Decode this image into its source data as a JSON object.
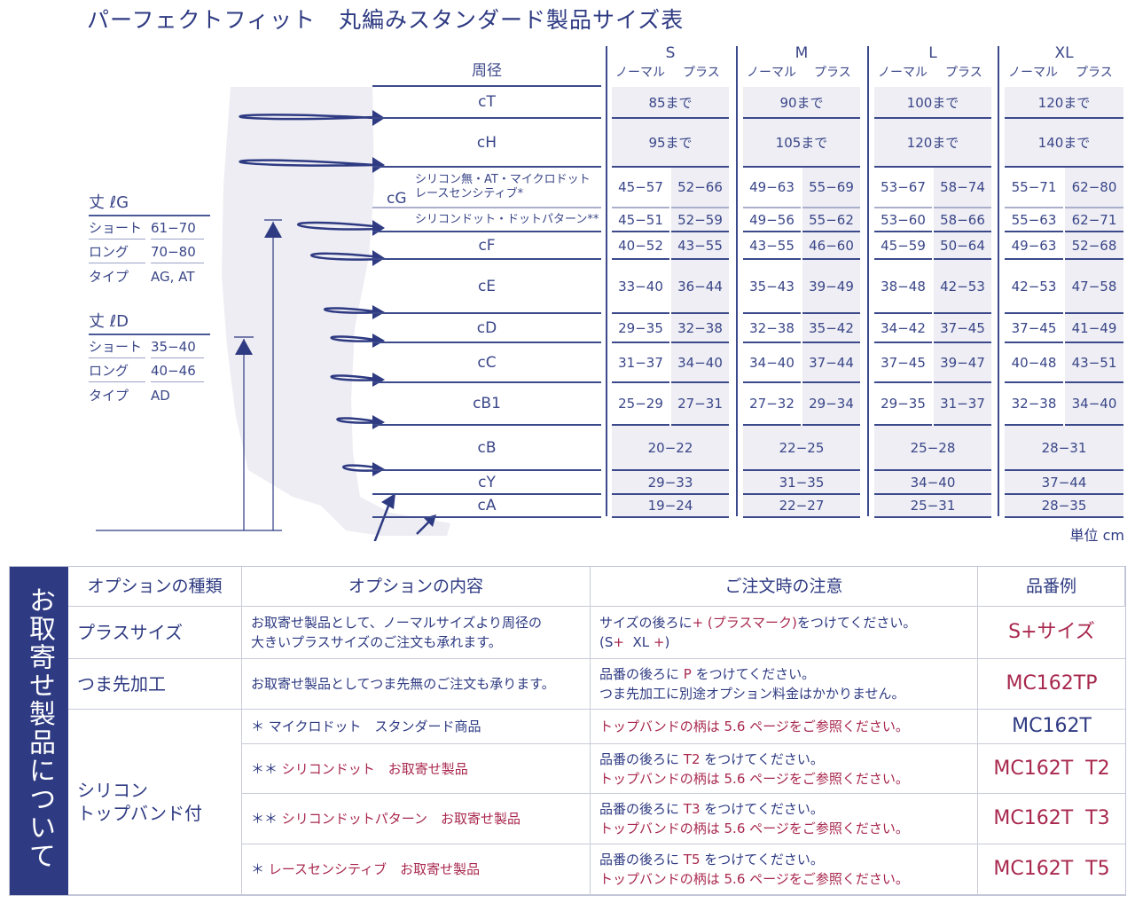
{
  "title": "パーフェクトフィット　丸編みスタンダード製品サイズ表",
  "colors": {
    "navy": "#2e3a82",
    "accent_red": "#a8284e",
    "shade": "#eeeef4"
  },
  "size_table": {
    "label_header": "周径",
    "sizes": [
      "S",
      "M",
      "L",
      "XL"
    ],
    "sub_headers": [
      "ノーマル",
      "プラス"
    ],
    "cg_label": "cG",
    "rows": [
      {
        "label": "cT",
        "merged": [
          "85まで",
          "90まで",
          "100まで",
          "120まで"
        ]
      },
      {
        "label": "cH",
        "merged": [
          "95まで",
          "105まで",
          "120まで",
          "140まで"
        ]
      },
      {
        "label": "シリコン無・AT・マイクロドット\nレースセンシティブ*",
        "split": [
          "45−57",
          "52−66",
          "49−63",
          "55−69",
          "53−67",
          "58−74",
          "55−71",
          "62−80"
        ]
      },
      {
        "label": "シリコンドット・ドットパターン**",
        "split": [
          "45−51",
          "52−59",
          "49−56",
          "55−62",
          "53−60",
          "58−66",
          "55−63",
          "62−71"
        ]
      },
      {
        "label": "cF",
        "split": [
          "40−52",
          "43−55",
          "43−55",
          "46−60",
          "45−59",
          "50−64",
          "49−63",
          "52−68"
        ]
      },
      {
        "label": "cE",
        "split": [
          "33−40",
          "36−44",
          "35−43",
          "39−49",
          "38−48",
          "42−53",
          "42−53",
          "47−58"
        ]
      },
      {
        "label": "cD",
        "split": [
          "29−35",
          "32−38",
          "32−38",
          "35−42",
          "34−42",
          "37−45",
          "37−45",
          "41−49"
        ]
      },
      {
        "label": "cC",
        "split": [
          "31−37",
          "34−40",
          "34−40",
          "37−44",
          "37−45",
          "39−47",
          "40−48",
          "43−51"
        ]
      },
      {
        "label": "cB1",
        "split": [
          "25−29",
          "27−31",
          "27−32",
          "29−34",
          "29−35",
          "31−37",
          "32−38",
          "34−40"
        ]
      },
      {
        "label": "cB",
        "merged": [
          "20−22",
          "22−25",
          "25−28",
          "28−31"
        ]
      },
      {
        "label": "cY",
        "merged": [
          "29−33",
          "31−35",
          "34−40",
          "37−44"
        ]
      },
      {
        "label": "cA",
        "merged": [
          "19−24",
          "22−27",
          "25−31",
          "28−35"
        ]
      }
    ],
    "unit": "単位 cm"
  },
  "lengths": [
    {
      "heading": "丈 ℓG",
      "rows": [
        [
          "ショート",
          "61−70"
        ],
        [
          "ロング",
          "70−80"
        ],
        [
          "タイプ",
          "AG, AT"
        ]
      ]
    },
    {
      "heading": "丈 ℓD",
      "rows": [
        [
          "ショート",
          "35−40"
        ],
        [
          "ロング",
          "40−46"
        ],
        [
          "タイプ",
          "AD"
        ]
      ]
    }
  ],
  "options": {
    "band_label": "お取寄せ製品について",
    "headers": [
      "オプションの種類",
      "オプションの内容",
      "ご注文時の注意",
      "品番例"
    ],
    "rows": [
      {
        "kind": "プラスサイズ",
        "content": [
          [
            {
              "t": "お取寄せ製品として、ノーマルサイズより周径の"
            }
          ],
          [
            {
              "t": "大きいプラスサイズのご注文も承れます。"
            }
          ]
        ],
        "note": [
          [
            {
              "t": "サイズの後ろに"
            },
            {
              "t": "+ (プラスマーク)",
              "r": true
            },
            {
              "t": "をつけてください。"
            }
          ],
          [
            {
              "t": "(S"
            },
            {
              "t": "+",
              "r": true
            },
            {
              "t": "  XL "
            },
            {
              "t": "+",
              "r": true
            },
            {
              "t": ")"
            }
          ]
        ],
        "code": "S+サイズ",
        "code_red": true
      },
      {
        "kind": "つま先加工",
        "content": [
          [
            {
              "t": "お取寄せ製品としてつま先無のご注文も承ります。"
            }
          ]
        ],
        "note": [
          [
            {
              "t": "品番の後ろに "
            },
            {
              "t": "P",
              "r": true
            },
            {
              "t": " をつけてください。"
            }
          ],
          [
            {
              "t": "つま先加工に別途オプション料金はかかりません。"
            }
          ]
        ],
        "code": "MC162TP",
        "code_red": true
      },
      {
        "kind": "シリコン\nトップバンド付",
        "content": [
          [
            {
              "t": "＊ マイクロドット　スタンダード商品"
            }
          ]
        ],
        "note": [
          [
            {
              "t": "トップバンドの柄は 5.6 ページをご参照ください。",
              "r": true
            }
          ]
        ],
        "code": "MC162T",
        "code_red": false
      },
      {
        "content": [
          [
            {
              "t": "＊＊ "
            },
            {
              "t": "シリコンドット　お取寄せ製品",
              "r": true
            }
          ]
        ],
        "note": [
          [
            {
              "t": "品番の後ろに "
            },
            {
              "t": "T2",
              "r": true
            },
            {
              "t": " をつけてください。"
            }
          ],
          [
            {
              "t": "トップバンドの柄は 5.6 ページをご参照ください。",
              "r": true
            }
          ]
        ],
        "code": "MC162T  T2",
        "code_red": true
      },
      {
        "content": [
          [
            {
              "t": "＊＊ "
            },
            {
              "t": "シリコンドットパターン　お取寄せ製品",
              "r": true
            }
          ]
        ],
        "note": [
          [
            {
              "t": "品番の後ろに "
            },
            {
              "t": "T3",
              "r": true
            },
            {
              "t": " をつけてください。"
            }
          ],
          [
            {
              "t": "トップバンドの柄は 5.6 ページをご参照ください。",
              "r": true
            }
          ]
        ],
        "code": "MC162T  T3",
        "code_red": true
      },
      {
        "content": [
          [
            {
              "t": "＊ "
            },
            {
              "t": "レースセンシティブ　お取寄せ製品",
              "r": true
            }
          ]
        ],
        "note": [
          [
            {
              "t": "品番の後ろに "
            },
            {
              "t": "T5",
              "r": true
            },
            {
              "t": " をつけてください。"
            }
          ],
          [
            {
              "t": "トップバンドの柄は 5.6 ページをご参照ください。",
              "r": true
            }
          ]
        ],
        "code": "MC162T  T5",
        "code_red": true
      }
    ]
  }
}
